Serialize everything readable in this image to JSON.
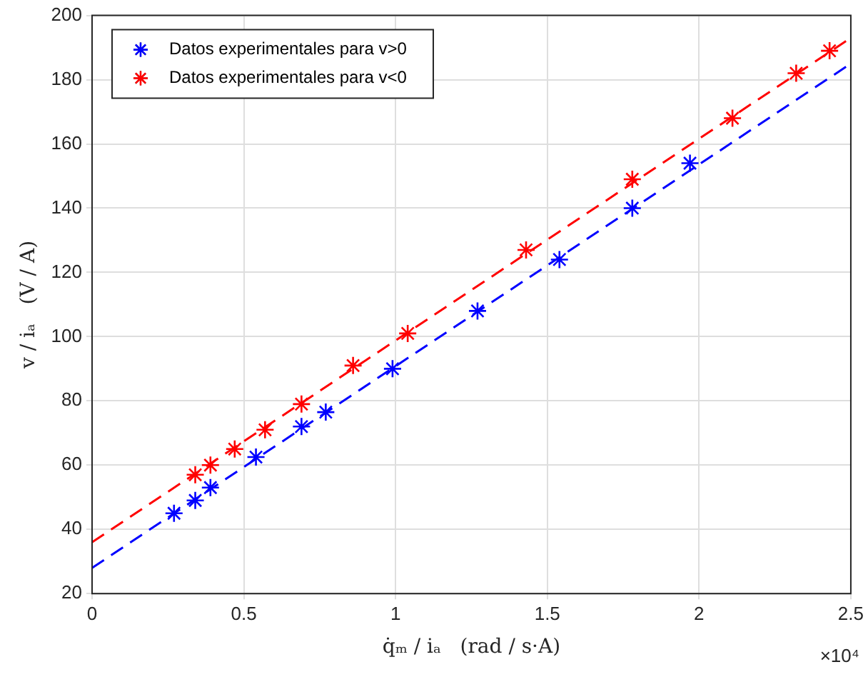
{
  "chart_data": {
    "type": "scatter",
    "xlabel": "q̇ₘ / iₐ   (rad / s·A)",
    "ylabel": "v / iₐ   (V / A)",
    "series": [
      {
        "name": "Datos experimentales para v>0",
        "color": "#0000ff",
        "marker": "cross",
        "x": [
          0.27,
          0.34,
          0.39,
          0.54,
          0.69,
          0.77,
          0.99,
          1.27,
          1.54,
          1.78,
          1.97
        ],
        "values": [
          45,
          49,
          53,
          62.5,
          72,
          76.5,
          90,
          108,
          124,
          140,
          154
        ]
      },
      {
        "name": "Datos experimentales para v<0",
        "color": "#ff0000",
        "marker": "cross",
        "x": [
          0.34,
          0.39,
          0.47,
          0.57,
          0.69,
          0.86,
          1.04,
          1.43,
          1.78,
          2.11,
          2.32,
          2.43
        ],
        "values": [
          57,
          60,
          65,
          71,
          79,
          91,
          101,
          127,
          149,
          168,
          182,
          189
        ]
      },
      {
        "color": "#0000ff",
        "type": "line",
        "line_style": "dashed",
        "marker": "none",
        "x": [
          0,
          2.5
        ],
        "values": [
          28,
          185
        ]
      },
      {
        "color": "#ff0000",
        "type": "line",
        "line_style": "dashed",
        "marker": "none",
        "x": [
          0,
          2.5
        ],
        "values": [
          36,
          193
        ]
      }
    ],
    "xlim": [
      0,
      2.5
    ],
    "xticks": [
      0,
      0.5,
      1,
      1.5,
      2,
      2.5
    ],
    "ylim": [
      20,
      200
    ],
    "yticks": [
      20,
      40,
      60,
      80,
      100,
      120,
      140,
      160,
      180,
      200
    ],
    "annotations": [
      "×10⁴"
    ],
    "grid": true,
    "legend": "top left"
  }
}
